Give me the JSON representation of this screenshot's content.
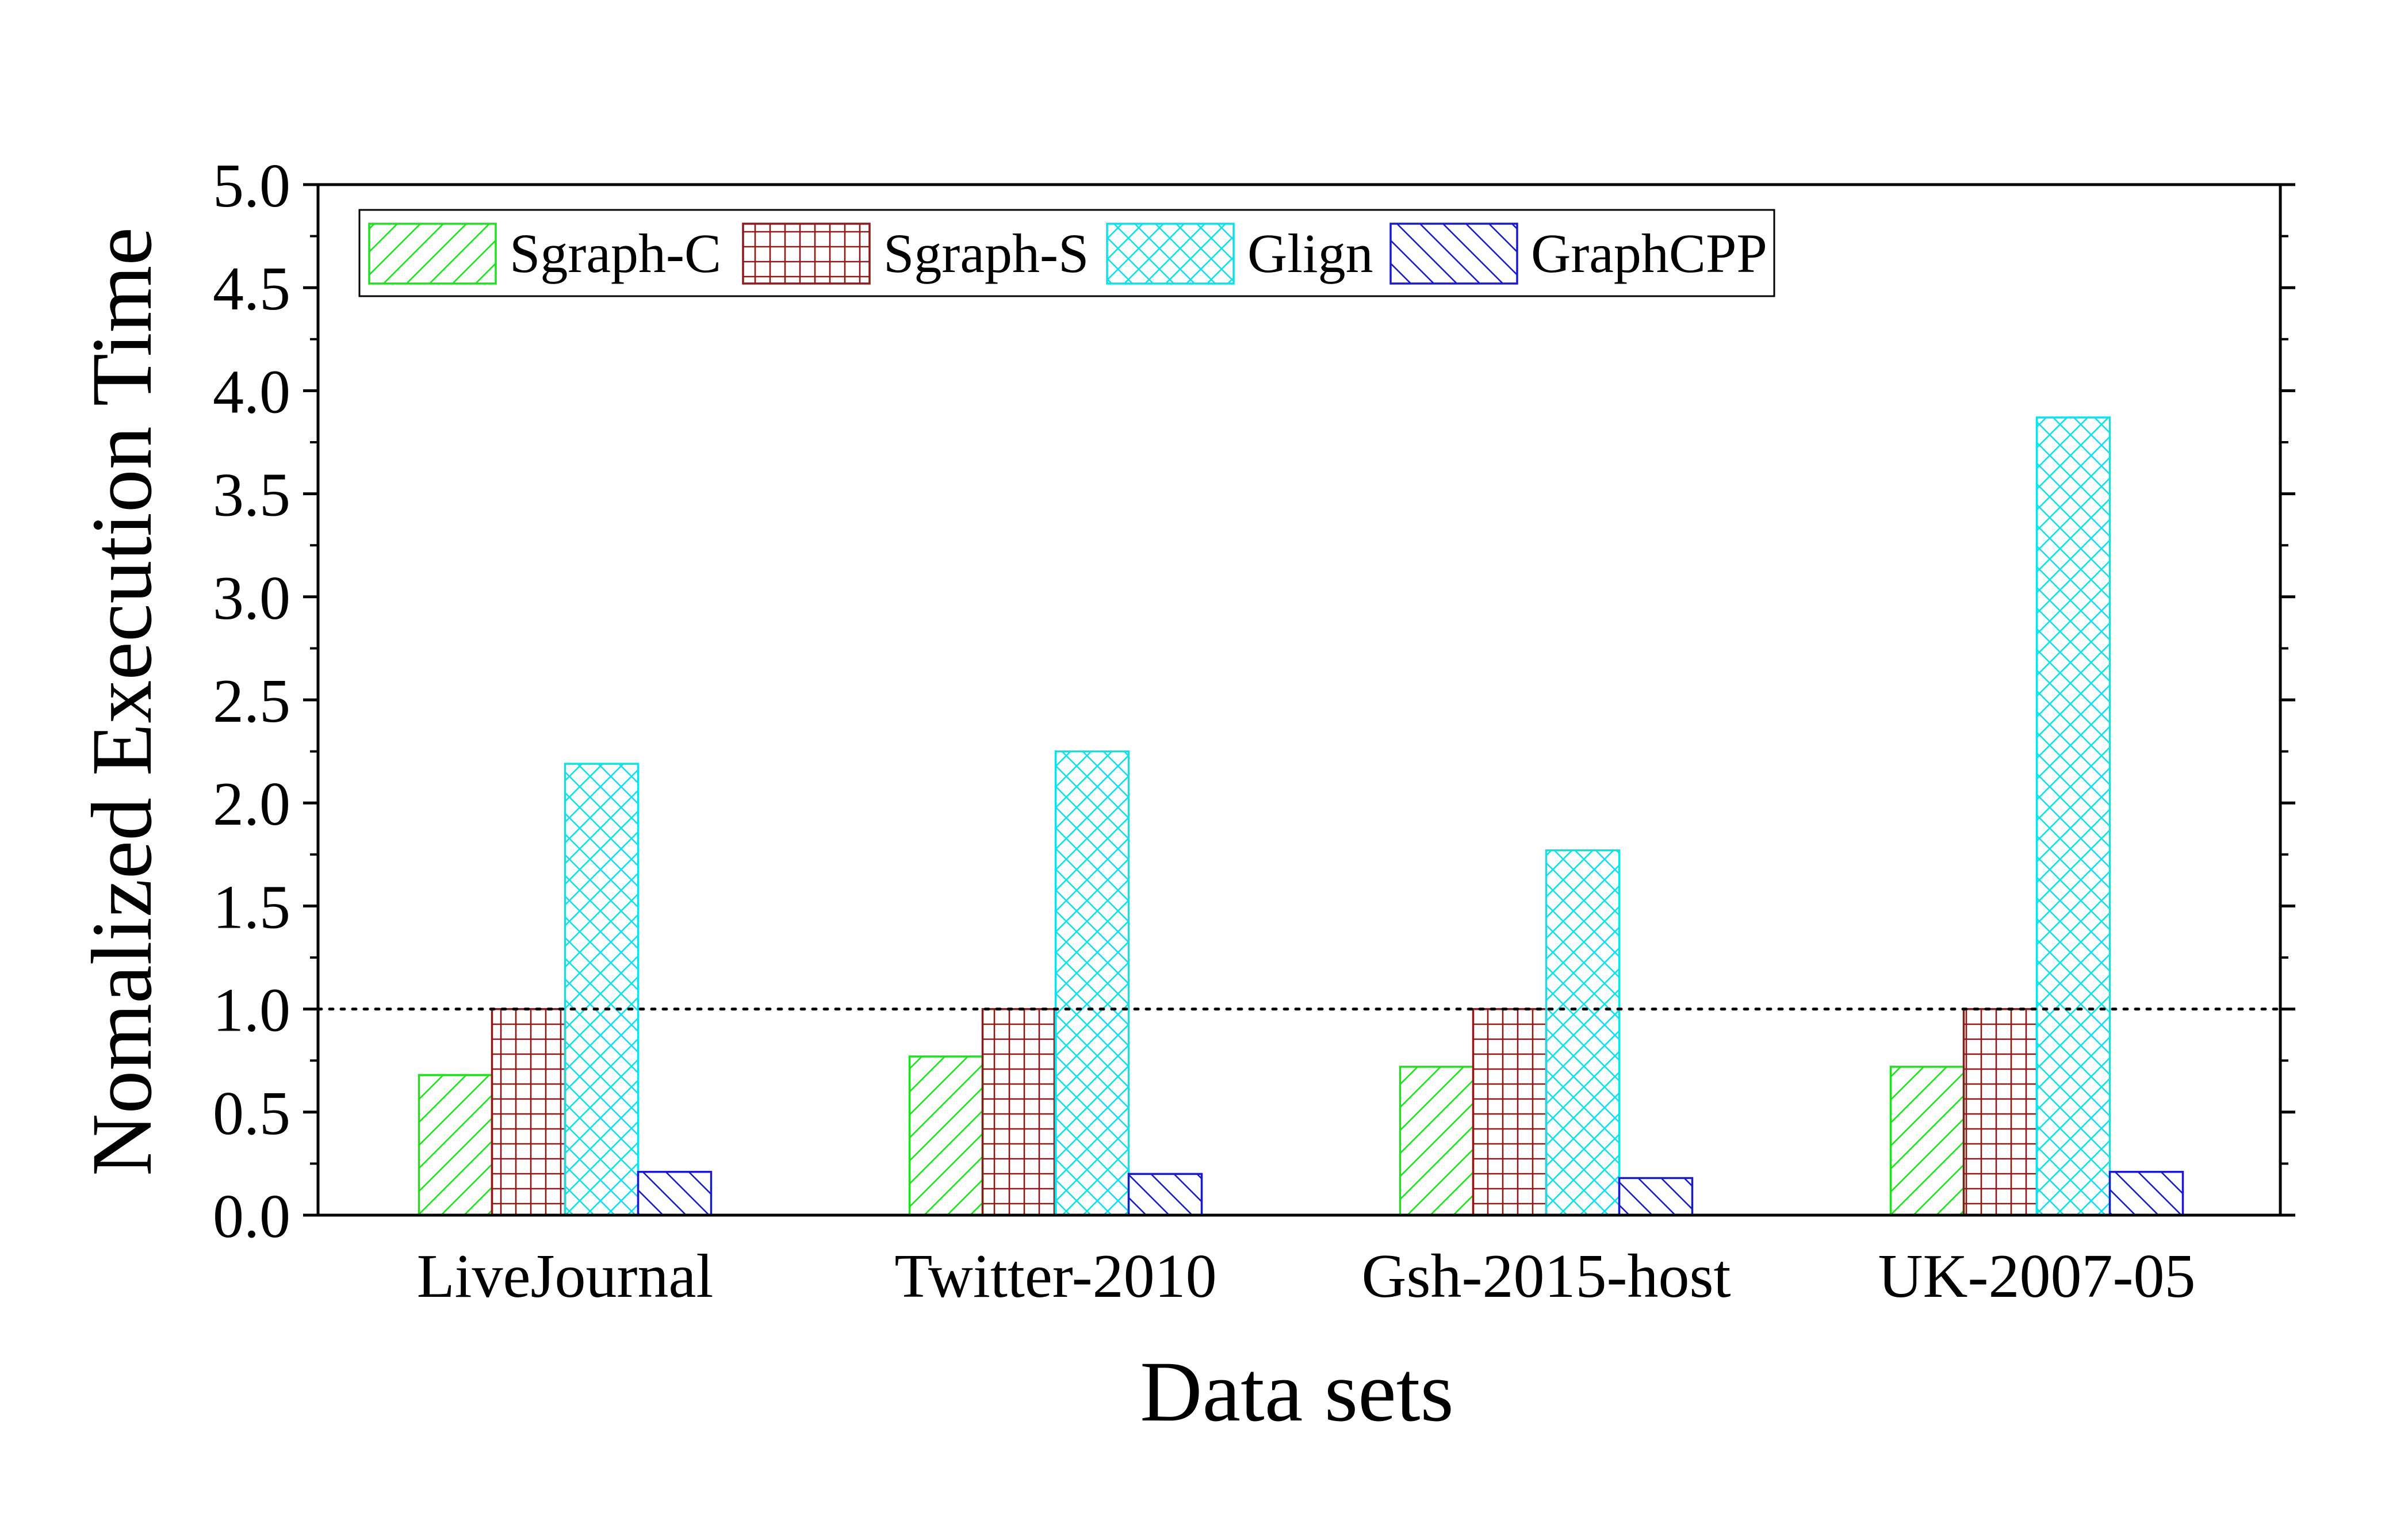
{
  "chart_data": {
    "type": "bar",
    "title": "",
    "xlabel": "Data sets",
    "ylabel": "Nomalized Execution Time",
    "categories": [
      "LiveJournal",
      "Twitter-2010",
      "Gsh-2015-host",
      "UK-2007-05"
    ],
    "ylim": [
      0,
      5.0
    ],
    "yticks": [
      "0.0",
      "0.5",
      "1.0",
      "1.5",
      "2.0",
      "2.5",
      "3.0",
      "3.5",
      "4.0",
      "4.5",
      "5.0"
    ],
    "reference_line": {
      "y": 1.0,
      "style": "dotted"
    },
    "legend_position": "top-left",
    "grid": false,
    "series": [
      {
        "name": "Sgraph-C",
        "values": [
          0.68,
          0.77,
          0.72,
          0.72
        ],
        "color": "#22dd22",
        "pattern": "diag-up"
      },
      {
        "name": "Sgraph-S",
        "values": [
          1.0,
          1.0,
          1.0,
          1.0
        ],
        "color": "#8b1a1a",
        "pattern": "grid"
      },
      {
        "name": "Glign",
        "values": [
          2.19,
          2.25,
          1.77,
          3.87
        ],
        "color": "#11e0e8",
        "pattern": "crosshatch"
      },
      {
        "name": "GraphCPP",
        "values": [
          0.21,
          0.2,
          0.18,
          0.21
        ],
        "color": "#1a1acc",
        "pattern": "diag-down"
      }
    ]
  }
}
